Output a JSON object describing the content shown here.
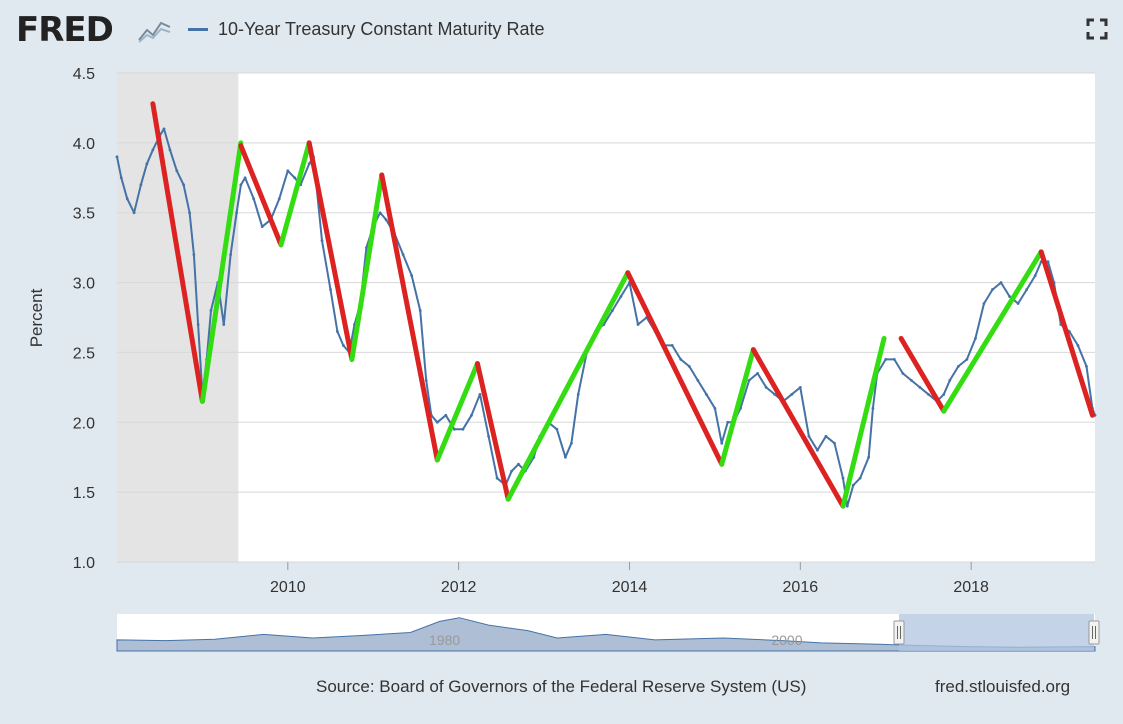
{
  "header": {
    "logo_text": "FRED",
    "series_title": "10-Year Treasury Constant Maturity Rate",
    "logo_icon": "line-chart-icon",
    "fullscreen_icon": "fullscreen-icon"
  },
  "footer": {
    "source": "Source: Board of Governors of the Federal Reserve System (US)",
    "site": "fred.stlouisfed.org"
  },
  "colors": {
    "series": "#4572a7",
    "recession": "#e4e4e4",
    "up_trend": "#33dd11",
    "down_trend": "#dd2222",
    "background": "#e1e9f0",
    "navigator_fill": "#aebfd5",
    "navigator_selection": "#b0c4e0"
  },
  "chart_data": {
    "type": "line",
    "title": "10-Year Treasury Constant Maturity Rate",
    "ylabel": "Percent",
    "xlabel": "",
    "xlim": [
      2008.0,
      2019.45
    ],
    "ylim": [
      1.0,
      4.5
    ],
    "y_ticks": [
      "1.0",
      "1.5",
      "2.0",
      "2.5",
      "3.0",
      "3.5",
      "4.0",
      "4.5"
    ],
    "x_ticks": [
      {
        "label": "2010",
        "value": 2010
      },
      {
        "label": "2012",
        "value": 2012
      },
      {
        "label": "2014",
        "value": 2014
      },
      {
        "label": "2016",
        "value": 2016
      },
      {
        "label": "2018",
        "value": 2018
      }
    ],
    "grid": true,
    "recession_shading": [
      [
        2008.0,
        2009.42
      ]
    ],
    "series": [
      {
        "name": "10-Year Treasury Constant Maturity Rate",
        "x": [
          2008.0,
          2008.05,
          2008.12,
          2008.2,
          2008.28,
          2008.35,
          2008.42,
          2008.5,
          2008.55,
          2008.62,
          2008.7,
          2008.78,
          2008.85,
          2008.9,
          2008.95,
          2009.0,
          2009.05,
          2009.1,
          2009.18,
          2009.25,
          2009.33,
          2009.4,
          2009.45,
          2009.5,
          2009.6,
          2009.7,
          2009.8,
          2009.9,
          2010.0,
          2010.08,
          2010.15,
          2010.25,
          2010.3,
          2010.4,
          2010.5,
          2010.58,
          2010.65,
          2010.72,
          2010.78,
          2010.85,
          2010.92,
          2011.0,
          2011.08,
          2011.15,
          2011.25,
          2011.35,
          2011.45,
          2011.55,
          2011.62,
          2011.68,
          2011.75,
          2011.85,
          2011.95,
          2012.05,
          2012.15,
          2012.25,
          2012.35,
          2012.45,
          2012.55,
          2012.62,
          2012.7,
          2012.78,
          2012.88,
          2012.95,
          2013.05,
          2013.15,
          2013.25,
          2013.32,
          2013.4,
          2013.5,
          2013.6,
          2013.7,
          2013.8,
          2013.9,
          2014.0,
          2014.1,
          2014.2,
          2014.3,
          2014.4,
          2014.5,
          2014.6,
          2014.7,
          2014.8,
          2014.9,
          2015.0,
          2015.08,
          2015.15,
          2015.22,
          2015.3,
          2015.4,
          2015.5,
          2015.6,
          2015.7,
          2015.8,
          2015.9,
          2016.0,
          2016.1,
          2016.2,
          2016.3,
          2016.4,
          2016.5,
          2016.55,
          2016.62,
          2016.7,
          2016.8,
          2016.85,
          2016.9,
          2017.0,
          2017.1,
          2017.2,
          2017.3,
          2017.4,
          2017.5,
          2017.6,
          2017.68,
          2017.75,
          2017.85,
          2017.95,
          2018.05,
          2018.15,
          2018.25,
          2018.35,
          2018.45,
          2018.55,
          2018.65,
          2018.75,
          2018.82,
          2018.9,
          2018.97,
          2019.05,
          2019.15,
          2019.25,
          2019.35,
          2019.42,
          2019.45
        ],
        "values": [
          3.9,
          3.75,
          3.6,
          3.5,
          3.7,
          3.85,
          3.95,
          4.05,
          4.1,
          3.95,
          3.8,
          3.7,
          3.5,
          3.2,
          2.7,
          2.2,
          2.45,
          2.8,
          3.0,
          2.7,
          3.2,
          3.5,
          3.7,
          3.75,
          3.6,
          3.4,
          3.45,
          3.6,
          3.8,
          3.75,
          3.7,
          3.85,
          3.9,
          3.3,
          2.95,
          2.65,
          2.55,
          2.5,
          2.7,
          2.85,
          3.25,
          3.4,
          3.5,
          3.45,
          3.35,
          3.2,
          3.05,
          2.8,
          2.3,
          2.05,
          2.0,
          2.05,
          1.95,
          1.95,
          2.05,
          2.2,
          1.9,
          1.6,
          1.55,
          1.65,
          1.7,
          1.65,
          1.75,
          1.9,
          2.0,
          1.95,
          1.75,
          1.85,
          2.2,
          2.5,
          2.65,
          2.7,
          2.8,
          2.9,
          3.0,
          2.7,
          2.75,
          2.65,
          2.55,
          2.55,
          2.45,
          2.4,
          2.3,
          2.2,
          2.1,
          1.85,
          2.0,
          2.0,
          2.1,
          2.3,
          2.35,
          2.25,
          2.2,
          2.15,
          2.2,
          2.25,
          1.9,
          1.8,
          1.9,
          1.85,
          1.6,
          1.4,
          1.55,
          1.6,
          1.75,
          2.1,
          2.35,
          2.45,
          2.45,
          2.35,
          2.3,
          2.25,
          2.2,
          2.15,
          2.2,
          2.3,
          2.4,
          2.45,
          2.6,
          2.85,
          2.95,
          3.0,
          2.9,
          2.85,
          2.95,
          3.05,
          3.15,
          3.15,
          3.0,
          2.7,
          2.65,
          2.55,
          2.4,
          2.1,
          2.05
        ]
      }
    ],
    "trend_segments": [
      {
        "type": "down",
        "x": [
          2008.42,
          2009.0
        ],
        "y": [
          4.28,
          2.15
        ]
      },
      {
        "type": "up",
        "x": [
          2009.0,
          2009.45
        ],
        "y": [
          2.15,
          4.0
        ]
      },
      {
        "type": "down",
        "x": [
          2009.45,
          2009.92
        ],
        "y": [
          3.98,
          3.27
        ]
      },
      {
        "type": "up",
        "x": [
          2009.92,
          2010.25
        ],
        "y": [
          3.27,
          4.0
        ]
      },
      {
        "type": "down",
        "x": [
          2010.25,
          2010.75
        ],
        "y": [
          4.0,
          2.45
        ]
      },
      {
        "type": "up",
        "x": [
          2010.75,
          2011.1
        ],
        "y": [
          2.45,
          3.77
        ]
      },
      {
        "type": "down",
        "x": [
          2011.1,
          2011.75
        ],
        "y": [
          3.77,
          1.73
        ]
      },
      {
        "type": "up",
        "x": [
          2011.75,
          2012.22
        ],
        "y": [
          1.73,
          2.42
        ]
      },
      {
        "type": "down",
        "x": [
          2012.22,
          2012.58
        ],
        "y": [
          2.42,
          1.45
        ]
      },
      {
        "type": "up",
        "x": [
          2012.58,
          2013.98
        ],
        "y": [
          1.45,
          3.07
        ]
      },
      {
        "type": "down",
        "x": [
          2013.98,
          2015.08
        ],
        "y": [
          3.07,
          1.7
        ]
      },
      {
        "type": "up",
        "x": [
          2015.08,
          2015.45
        ],
        "y": [
          1.7,
          2.52
        ]
      },
      {
        "type": "down",
        "x": [
          2015.45,
          2016.5
        ],
        "y": [
          2.52,
          1.4
        ]
      },
      {
        "type": "up",
        "x": [
          2016.5,
          2016.98
        ],
        "y": [
          1.4,
          2.6
        ]
      },
      {
        "type": "down",
        "x": [
          2017.18,
          2017.68
        ],
        "y": [
          2.6,
          2.08
        ]
      },
      {
        "type": "up",
        "x": [
          2017.68,
          2018.82
        ],
        "y": [
          2.08,
          3.22
        ]
      },
      {
        "type": "down",
        "x": [
          2018.82,
          2019.42
        ],
        "y": [
          3.22,
          2.05
        ]
      }
    ],
    "navigator": {
      "tick_labels": [
        {
          "label": "1980",
          "value": 1980
        },
        {
          "label": "2000",
          "value": 2000
        }
      ]
    }
  }
}
